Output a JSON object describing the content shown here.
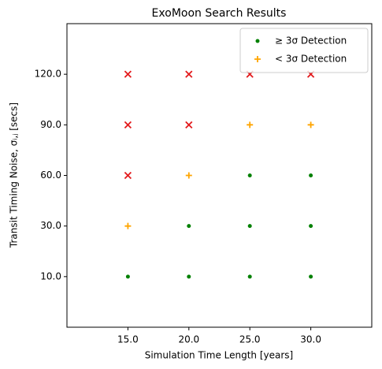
{
  "chart_data": {
    "type": "scatter",
    "title": "ExoMoon Search Results",
    "xlabel": "Simulation Time Length [years]",
    "ylabel": "Transit Timing Noise, σᵢ,ⱼ [secs]",
    "xlim": [
      10,
      35
    ],
    "xticks": [
      {
        "value": 15,
        "label": "15.0"
      },
      {
        "value": 20,
        "label": "20.0"
      },
      {
        "value": 25,
        "label": "25.0"
      },
      {
        "value": 30,
        "label": "30.0"
      }
    ],
    "yscale": "ordinal",
    "yticks": [
      {
        "value": 10,
        "label": "10.0"
      },
      {
        "value": 30,
        "label": "30.0"
      },
      {
        "value": 60,
        "label": "60.0"
      },
      {
        "value": 90,
        "label": "90.0"
      },
      {
        "value": 120,
        "label": "120.0"
      }
    ],
    "legend": "upper right",
    "series": [
      {
        "name": "≥ 3σ Detection",
        "marker": "dot",
        "color": "#008000",
        "x": [
          15,
          20,
          25,
          30,
          20,
          25,
          30,
          25,
          30
        ],
        "values": [
          10,
          10,
          10,
          10,
          30,
          30,
          30,
          60,
          60
        ]
      },
      {
        "name": "< 3σ Detection",
        "marker": "plus",
        "color": "#ffa500",
        "x": [
          15,
          20,
          25,
          30
        ],
        "values": [
          30,
          60,
          90,
          90
        ]
      },
      {
        "marker": "cross",
        "color": "#e31a1c",
        "x": [
          15,
          15,
          20,
          15,
          20,
          25,
          30
        ],
        "values": [
          60,
          90,
          90,
          120,
          120,
          120,
          120
        ]
      }
    ]
  }
}
